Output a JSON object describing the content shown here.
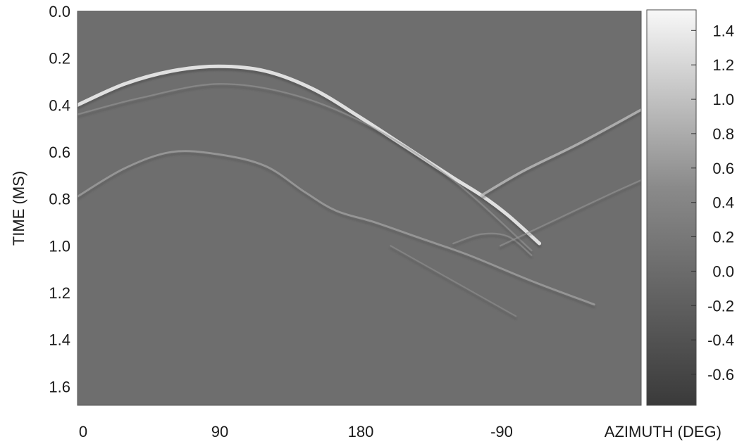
{
  "chart_data": {
    "type": "heatmap",
    "title": "",
    "xlabel": "AZIMUTH  (DEG)",
    "ylabel": "TIME  (MS)",
    "x_ticks": [
      "0",
      "90",
      "180",
      "-90"
    ],
    "x_tick_values": [
      0,
      90,
      180,
      270
    ],
    "xlim": [
      0,
      360
    ],
    "y_ticks": [
      "0.0",
      "0.2",
      "0.4",
      "0.6",
      "0.8",
      "1.0",
      "1.2",
      "1.4",
      "1.6"
    ],
    "y_tick_values": [
      0.0,
      0.2,
      0.4,
      0.6,
      0.8,
      1.0,
      1.2,
      1.4,
      1.6
    ],
    "ylim": [
      0.0,
      1.68
    ],
    "y_inverted": true,
    "colorbar": {
      "ticks": [
        "1.4",
        "1.2",
        "1.0",
        "0.8",
        "0.6",
        "0.4",
        "0.2",
        "0.0",
        "-0.2",
        "-0.4",
        "-0.6"
      ],
      "tick_values": [
        1.4,
        1.2,
        1.0,
        0.8,
        0.6,
        0.4,
        0.2,
        0.0,
        -0.2,
        -0.4,
        -0.6
      ],
      "range": [
        -0.78,
        1.52
      ],
      "colormap": "grayscale",
      "low_color": "#3a3a3a",
      "high_color": "#f8f8f8"
    },
    "background_value": -0.1,
    "background_color": "#6e6e6e",
    "grid": false,
    "reflections": [
      {
        "strength": 1.2,
        "points": [
          [
            0,
            0.4
          ],
          [
            30,
            0.31
          ],
          [
            60,
            0.255
          ],
          [
            90,
            0.235
          ],
          [
            120,
            0.255
          ],
          [
            150,
            0.33
          ],
          [
            180,
            0.45
          ],
          [
            210,
            0.58
          ],
          [
            240,
            0.71
          ],
          [
            258,
            0.785
          ],
          [
            275,
            0.87
          ],
          [
            295,
            0.99
          ]
        ]
      },
      {
        "strength": 0.75,
        "points": [
          [
            258,
            0.785
          ],
          [
            285,
            0.68
          ],
          [
            320,
            0.565
          ],
          [
            360,
            0.42
          ]
        ]
      },
      {
        "strength": 0.3,
        "points": [
          [
            0,
            0.44
          ],
          [
            40,
            0.37
          ],
          [
            90,
            0.31
          ],
          [
            140,
            0.36
          ],
          [
            190,
            0.5
          ],
          [
            240,
            0.72
          ],
          [
            290,
            1.02
          ]
        ]
      },
      {
        "strength": 0.5,
        "points": [
          [
            0,
            0.79
          ],
          [
            30,
            0.67
          ],
          [
            60,
            0.6
          ],
          [
            90,
            0.61
          ],
          [
            120,
            0.66
          ],
          [
            145,
            0.77
          ],
          [
            165,
            0.85
          ],
          [
            190,
            0.9
          ],
          [
            220,
            0.97
          ],
          [
            250,
            1.04
          ],
          [
            290,
            1.15
          ],
          [
            330,
            1.25
          ]
        ]
      },
      {
        "strength": 0.3,
        "points": [
          [
            240,
            0.99
          ],
          [
            258,
            0.95
          ],
          [
            275,
            0.96
          ],
          [
            290,
            1.04
          ]
        ]
      },
      {
        "strength": 0.3,
        "points": [
          [
            270,
            1.0
          ],
          [
            305,
            0.89
          ],
          [
            340,
            0.78
          ],
          [
            360,
            0.72
          ]
        ]
      },
      {
        "strength": 0.25,
        "points": [
          [
            200,
            1.0
          ],
          [
            240,
            1.15
          ],
          [
            280,
            1.3
          ]
        ]
      }
    ]
  }
}
